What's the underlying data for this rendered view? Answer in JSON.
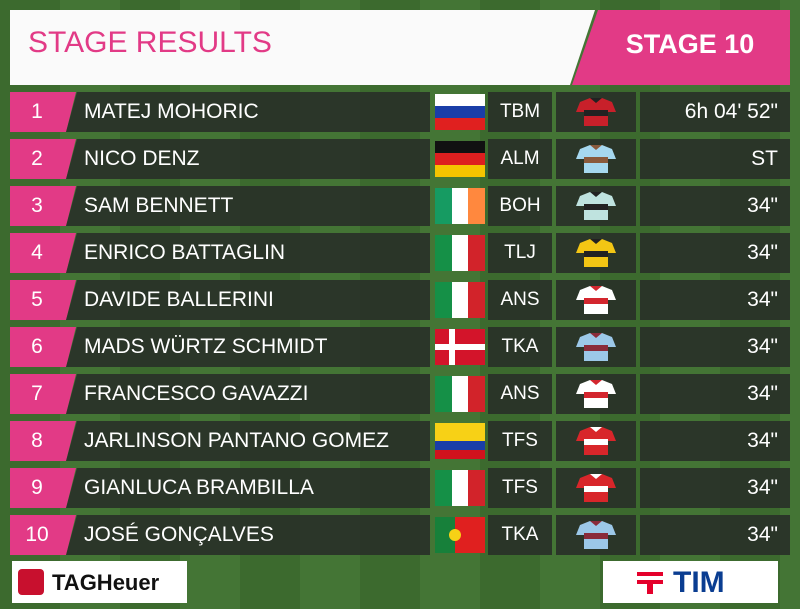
{
  "header": {
    "title": "STAGE RESULTS",
    "stage": "STAGE 10"
  },
  "results": [
    {
      "rank": 1,
      "name": "MATEJ MOHORIC",
      "team": "TBM",
      "time": "6h 04' 52\""
    },
    {
      "rank": 2,
      "name": "NICO DENZ",
      "team": "ALM",
      "time": "ST"
    },
    {
      "rank": 3,
      "name": "SAM BENNETT",
      "team": "BOH",
      "time": "34\""
    },
    {
      "rank": 4,
      "name": "ENRICO BATTAGLIN",
      "team": "TLJ",
      "time": "34\""
    },
    {
      "rank": 5,
      "name": "DAVIDE BALLERINI",
      "team": "ANS",
      "time": "34\""
    },
    {
      "rank": 6,
      "name": "MADS WÜRTZ SCHMIDT",
      "team": "TKA",
      "time": "34\""
    },
    {
      "rank": 7,
      "name": "FRANCESCO GAVAZZI",
      "team": "ANS",
      "time": "34\""
    },
    {
      "rank": 8,
      "name": "JARLINSON PANTANO GOMEZ",
      "team": "TFS",
      "time": "34\""
    },
    {
      "rank": 9,
      "name": "GIANLUCA BRAMBILLA",
      "team": "TFS",
      "time": "34\""
    },
    {
      "rank": 10,
      "name": "JOSÉ GONÇALVES",
      "team": "TKA",
      "time": "34\""
    }
  ],
  "sponsors": {
    "left": "TAGHeuer",
    "right": "TIM"
  }
}
